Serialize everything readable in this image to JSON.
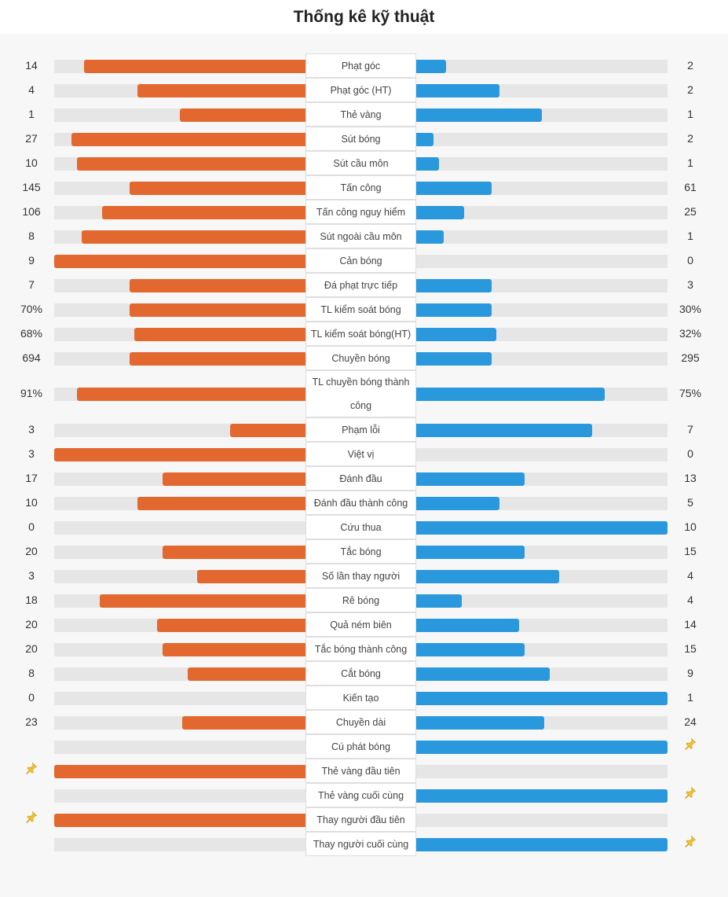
{
  "title": "Thống kê kỹ thuật",
  "colors": {
    "home": "#e2682f",
    "away": "#2a98dc",
    "track": "#e6e6e6",
    "pin": "#f2c230"
  },
  "stats": [
    {
      "label": "Phạt góc",
      "home": "14",
      "away": "2",
      "home_pct": 0.88,
      "away_pct": 0.12
    },
    {
      "label": "Phạt góc (HT)",
      "home": "4",
      "away": "2",
      "home_pct": 0.67,
      "away_pct": 0.33
    },
    {
      "label": "Thẻ vàng",
      "home": "1",
      "away": "1",
      "home_pct": 0.5,
      "away_pct": 0.5
    },
    {
      "label": "Sút bóng",
      "home": "27",
      "away": "2",
      "home_pct": 0.93,
      "away_pct": 0.07
    },
    {
      "label": "Sút cầu môn",
      "home": "10",
      "away": "1",
      "home_pct": 0.91,
      "away_pct": 0.09
    },
    {
      "label": "Tấn công",
      "home": "145",
      "away": "61",
      "home_pct": 0.7,
      "away_pct": 0.3
    },
    {
      "label": "Tấn công nguy hiểm",
      "home": "106",
      "away": "25",
      "home_pct": 0.81,
      "away_pct": 0.19
    },
    {
      "label": "Sút ngoài cầu môn",
      "home": "8",
      "away": "1",
      "home_pct": 0.89,
      "away_pct": 0.11
    },
    {
      "label": "Cản bóng",
      "home": "9",
      "away": "0",
      "home_pct": 1.0,
      "away_pct": 0.0
    },
    {
      "label": "Đá phạt trực tiếp",
      "home": "7",
      "away": "3",
      "home_pct": 0.7,
      "away_pct": 0.3
    },
    {
      "label": "TL kiểm soát bóng",
      "home": "70%",
      "away": "30%",
      "home_pct": 0.7,
      "away_pct": 0.3
    },
    {
      "label": "TL kiểm soát bóng(HT)",
      "home": "68%",
      "away": "32%",
      "home_pct": 0.68,
      "away_pct": 0.32
    },
    {
      "label": "Chuyền bóng",
      "home": "694",
      "away": "295",
      "home_pct": 0.7,
      "away_pct": 0.3
    },
    {
      "label": "TL chuyền bóng thành công",
      "home": "91%",
      "away": "75%",
      "home_pct": 0.91,
      "away_pct": 0.75,
      "tall": true
    },
    {
      "label": "Phạm lỗi",
      "home": "3",
      "away": "7",
      "home_pct": 0.3,
      "away_pct": 0.7
    },
    {
      "label": "Việt vị",
      "home": "3",
      "away": "0",
      "home_pct": 1.0,
      "away_pct": 0.0
    },
    {
      "label": "Đánh đầu",
      "home": "17",
      "away": "13",
      "home_pct": 0.57,
      "away_pct": 0.43
    },
    {
      "label": "Đánh đầu thành công",
      "home": "10",
      "away": "5",
      "home_pct": 0.67,
      "away_pct": 0.33
    },
    {
      "label": "Cứu thua",
      "home": "0",
      "away": "10",
      "home_pct": 0.0,
      "away_pct": 1.0
    },
    {
      "label": "Tắc bóng",
      "home": "20",
      "away": "15",
      "home_pct": 0.57,
      "away_pct": 0.43
    },
    {
      "label": "Số lần thay người",
      "home": "3",
      "away": "4",
      "home_pct": 0.43,
      "away_pct": 0.57
    },
    {
      "label": "Rê bóng",
      "home": "18",
      "away": "4",
      "home_pct": 0.82,
      "away_pct": 0.18
    },
    {
      "label": "Quả ném biên",
      "home": "20",
      "away": "14",
      "home_pct": 0.59,
      "away_pct": 0.41
    },
    {
      "label": "Tắc bóng thành công",
      "home": "20",
      "away": "15",
      "home_pct": 0.57,
      "away_pct": 0.43
    },
    {
      "label": "Cắt bóng",
      "home": "8",
      "away": "9",
      "home_pct": 0.47,
      "away_pct": 0.53
    },
    {
      "label": "Kiến tạo",
      "home": "0",
      "away": "1",
      "home_pct": 0.0,
      "away_pct": 1.0
    },
    {
      "label": "Chuyền dài",
      "home": "23",
      "away": "24",
      "home_pct": 0.49,
      "away_pct": 0.51
    },
    {
      "label": "Cú phát bóng",
      "home": "",
      "away": "",
      "home_pct": 0.0,
      "away_pct": 1.0,
      "pin": "away"
    },
    {
      "label": "Thẻ vàng đầu tiên",
      "home": "",
      "away": "",
      "home_pct": 1.0,
      "away_pct": 0.0,
      "pin": "home"
    },
    {
      "label": "Thẻ vàng cuối cùng",
      "home": "",
      "away": "",
      "home_pct": 0.0,
      "away_pct": 1.0,
      "pin": "away"
    },
    {
      "label": "Thay người đầu tiên",
      "home": "",
      "away": "",
      "home_pct": 1.0,
      "away_pct": 0.0,
      "pin": "home"
    },
    {
      "label": "Thay người cuối cùng",
      "home": "",
      "away": "",
      "home_pct": 0.0,
      "away_pct": 1.0,
      "pin": "away"
    }
  ]
}
